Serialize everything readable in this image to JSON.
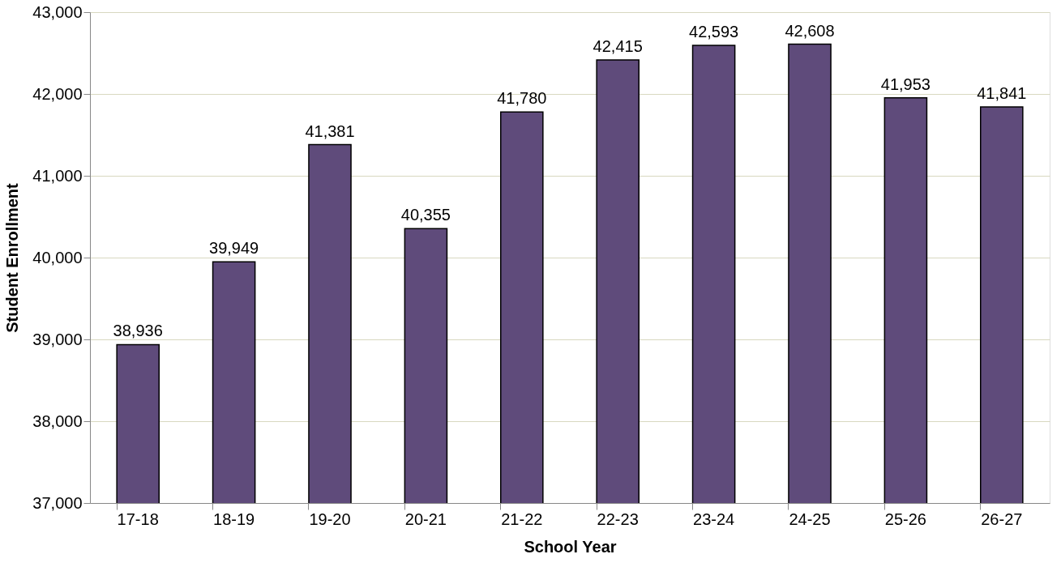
{
  "chart_data": {
    "type": "bar",
    "xlabel": "School Year",
    "ylabel": "Student Enrollment",
    "categories": [
      "17-18",
      "18-19",
      "19-20",
      "20-21",
      "21-22",
      "22-23",
      "23-24",
      "24-25",
      "25-26",
      "26-27"
    ],
    "values": [
      38936,
      39949,
      41381,
      40355,
      41780,
      42415,
      42593,
      42608,
      41953,
      41841
    ],
    "value_labels": [
      "38,936",
      "39,949",
      "41,381",
      "40,355",
      "41,780",
      "42,415",
      "42,593",
      "42,608",
      "41,953",
      "41,841"
    ],
    "color": "#5f4b7b",
    "ylim": [
      37000,
      43000
    ],
    "yticks": [
      {
        "value": 37000,
        "label": "37,000"
      },
      {
        "value": 38000,
        "label": "38,000"
      },
      {
        "value": 39000,
        "label": "39,000"
      },
      {
        "value": 40000,
        "label": "40,000"
      },
      {
        "value": 41000,
        "label": "41,000"
      },
      {
        "value": 42000,
        "label": "42,000"
      },
      {
        "value": 43000,
        "label": "43,000"
      }
    ],
    "grid": "y"
  }
}
